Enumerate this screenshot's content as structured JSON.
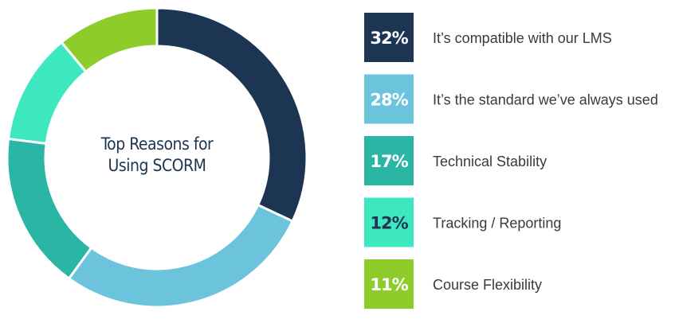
{
  "chart_data": {
    "type": "pie",
    "donut": true,
    "title": "Top Reasons for Using SCORM",
    "categories": [
      "It’s compatible with our LMS",
      "It’s the standard we’ve always used",
      "Technical Stability",
      "Tracking / Reporting",
      "Course Flexibility"
    ],
    "values": [
      32,
      28,
      17,
      12,
      11
    ],
    "value_labels": [
      "32%",
      "28%",
      "17%",
      "12%",
      "11%"
    ],
    "colors": [
      "#1c3553",
      "#6cc4dc",
      "#2bb5a5",
      "#3de8c0",
      "#8dcc2a"
    ]
  }
}
